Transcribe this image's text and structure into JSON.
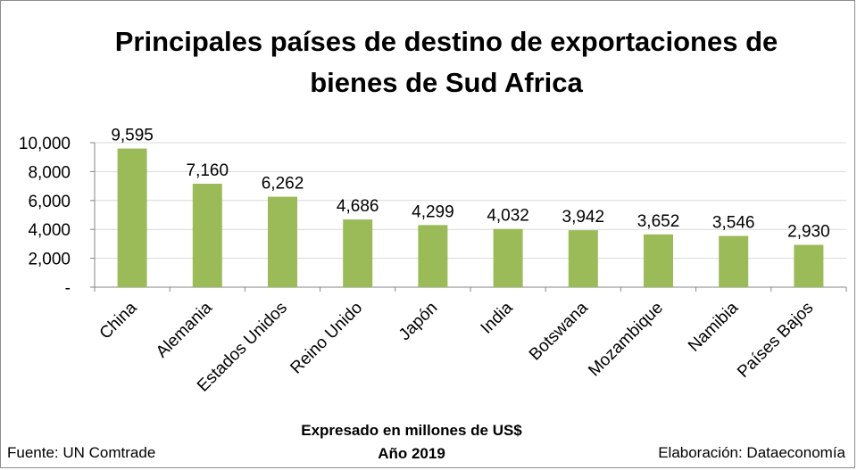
{
  "chart_data": {
    "type": "bar",
    "title_line1": "Principales países de destino de exportaciones de",
    "title_line2": "bienes de Sud Africa",
    "categories": [
      "China",
      "Alemania",
      "Estados Unidos",
      "Reino Unido",
      "Japón",
      "India",
      "Botswana",
      "Mozambique",
      "Namibia",
      "Países Bajos"
    ],
    "values": [
      9595,
      7160,
      6262,
      4686,
      4299,
      4032,
      3942,
      3652,
      3546,
      2930
    ],
    "value_labels": [
      "9,595",
      "7,160",
      "6,262",
      "4,686",
      "4,299",
      "4,032",
      "3,942",
      "3,652",
      "3,546",
      "2,930"
    ],
    "yticks": [
      0,
      2000,
      4000,
      6000,
      8000,
      10000
    ],
    "ytick_labels": [
      "-",
      "2,000",
      "4,000",
      "6,000",
      "8,000",
      "10,000"
    ],
    "ylim": [
      0,
      10000
    ],
    "grid": true,
    "bar_color": "#9bbb59",
    "grid_color": "#d9d9d9",
    "xlabel_line1": "Expresado en millones de US$",
    "xlabel_line2": "Año 2019"
  },
  "footer": {
    "source": "Fuente: UN Comtrade",
    "credit": "Elaboración: Dataeconomía"
  }
}
